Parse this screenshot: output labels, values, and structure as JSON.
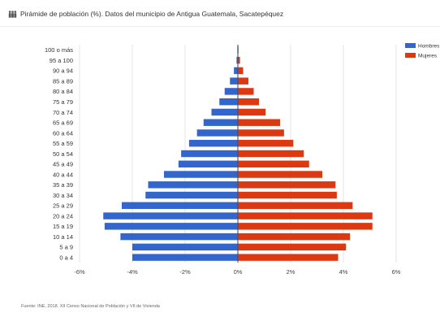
{
  "header": {
    "title": "Pirámide de población (%). Datos del municipio de Antigua Guatemala, Sacatepéquez",
    "icon": "population-pyramid-icon"
  },
  "footer": {
    "source": "Fuente: INE, 2018. XII Censo Nacional de Población y VII de Vivienda"
  },
  "chart_data": {
    "type": "bar",
    "orientation": "horizontal",
    "categories": [
      "100 o más",
      "95 a 100",
      "90 a 94",
      "85 a 89",
      "80 a 84",
      "75 a 79",
      "70 a 74",
      "65 a 69",
      "60 a 64",
      "55 a 59",
      "50 a 54",
      "45 a 49",
      "40 a 44",
      "35 a 39",
      "30 a 34",
      "25 a 29",
      "20 a 24",
      "15 a 19",
      "10 a 14",
      "5 a 9",
      "0 a 4"
    ],
    "series": [
      {
        "name": "Hombres",
        "color": "#3366cc",
        "values": [
          -0.02,
          -0.05,
          -0.15,
          -0.3,
          -0.5,
          -0.7,
          -1.0,
          -1.3,
          -1.55,
          -1.85,
          -2.15,
          -2.25,
          -2.8,
          -3.4,
          -3.5,
          -4.4,
          -5.1,
          -5.05,
          -4.45,
          -4.0,
          -4.0
        ]
      },
      {
        "name": "Mujeres",
        "color": "#dc3912",
        "values": [
          0.02,
          0.08,
          0.2,
          0.4,
          0.6,
          0.8,
          1.05,
          1.6,
          1.75,
          2.1,
          2.5,
          2.7,
          3.2,
          3.7,
          3.75,
          4.35,
          5.1,
          5.1,
          4.25,
          4.1,
          3.8
        ]
      }
    ],
    "x_ticks": [
      "-6%",
      "-4%",
      "-2%",
      "0%",
      "2%",
      "4%",
      "6%"
    ],
    "xlim": [
      -6,
      6
    ],
    "grid": true,
    "legend_position": "right"
  }
}
